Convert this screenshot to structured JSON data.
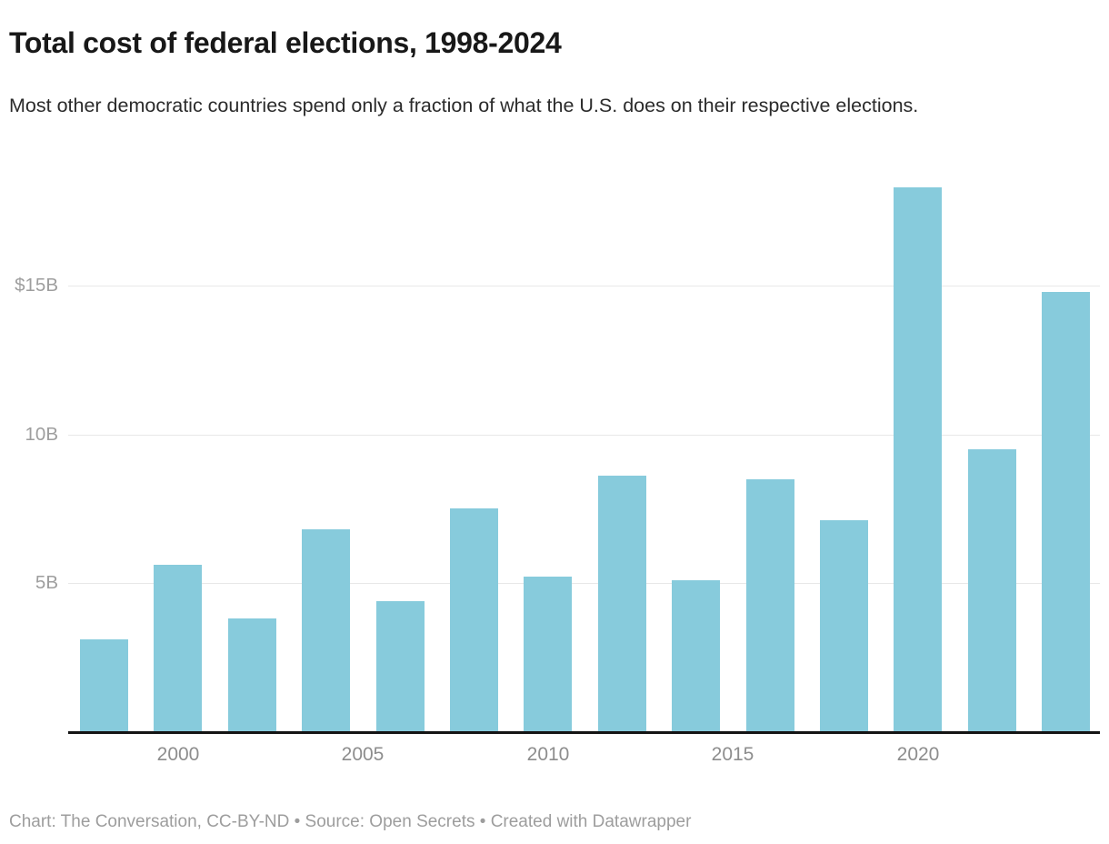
{
  "header": {
    "title": "Total cost of federal elections, 1998-2024",
    "subtitle": "Most other democratic countries spend only a fraction of what the U.S. does on their respective elections."
  },
  "chart_data": {
    "type": "bar",
    "title": "Total cost of federal elections, 1998-2024",
    "subtitle": "Most other democratic countries spend only a fraction of what the U.S. does on their respective elections.",
    "unit": "billions of U.S. dollars",
    "categories": [
      1998,
      2000,
      2002,
      2004,
      2006,
      2008,
      2010,
      2012,
      2014,
      2016,
      2018,
      2020,
      2022,
      2024
    ],
    "values": [
      3.1,
      5.6,
      3.8,
      6.8,
      4.4,
      7.5,
      5.2,
      8.6,
      5.1,
      8.5,
      7.1,
      18.3,
      9.5,
      14.8
    ],
    "xlabel": "",
    "ylabel": "",
    "ylim": [
      0,
      18.8
    ],
    "yticks": [
      {
        "value": 5,
        "label": "5B"
      },
      {
        "value": 10,
        "label": "10B"
      },
      {
        "value": 15,
        "label": "$15B"
      }
    ],
    "xticks": [
      2000,
      2005,
      2010,
      2015,
      2020
    ],
    "grid": "horizontal-only",
    "legend_position": "none",
    "bar_color": "#87cbdc"
  },
  "footer": {
    "text": "Chart: The Conversation, CC-BY-ND • Source: Open Secrets • Created with Datawrapper"
  }
}
